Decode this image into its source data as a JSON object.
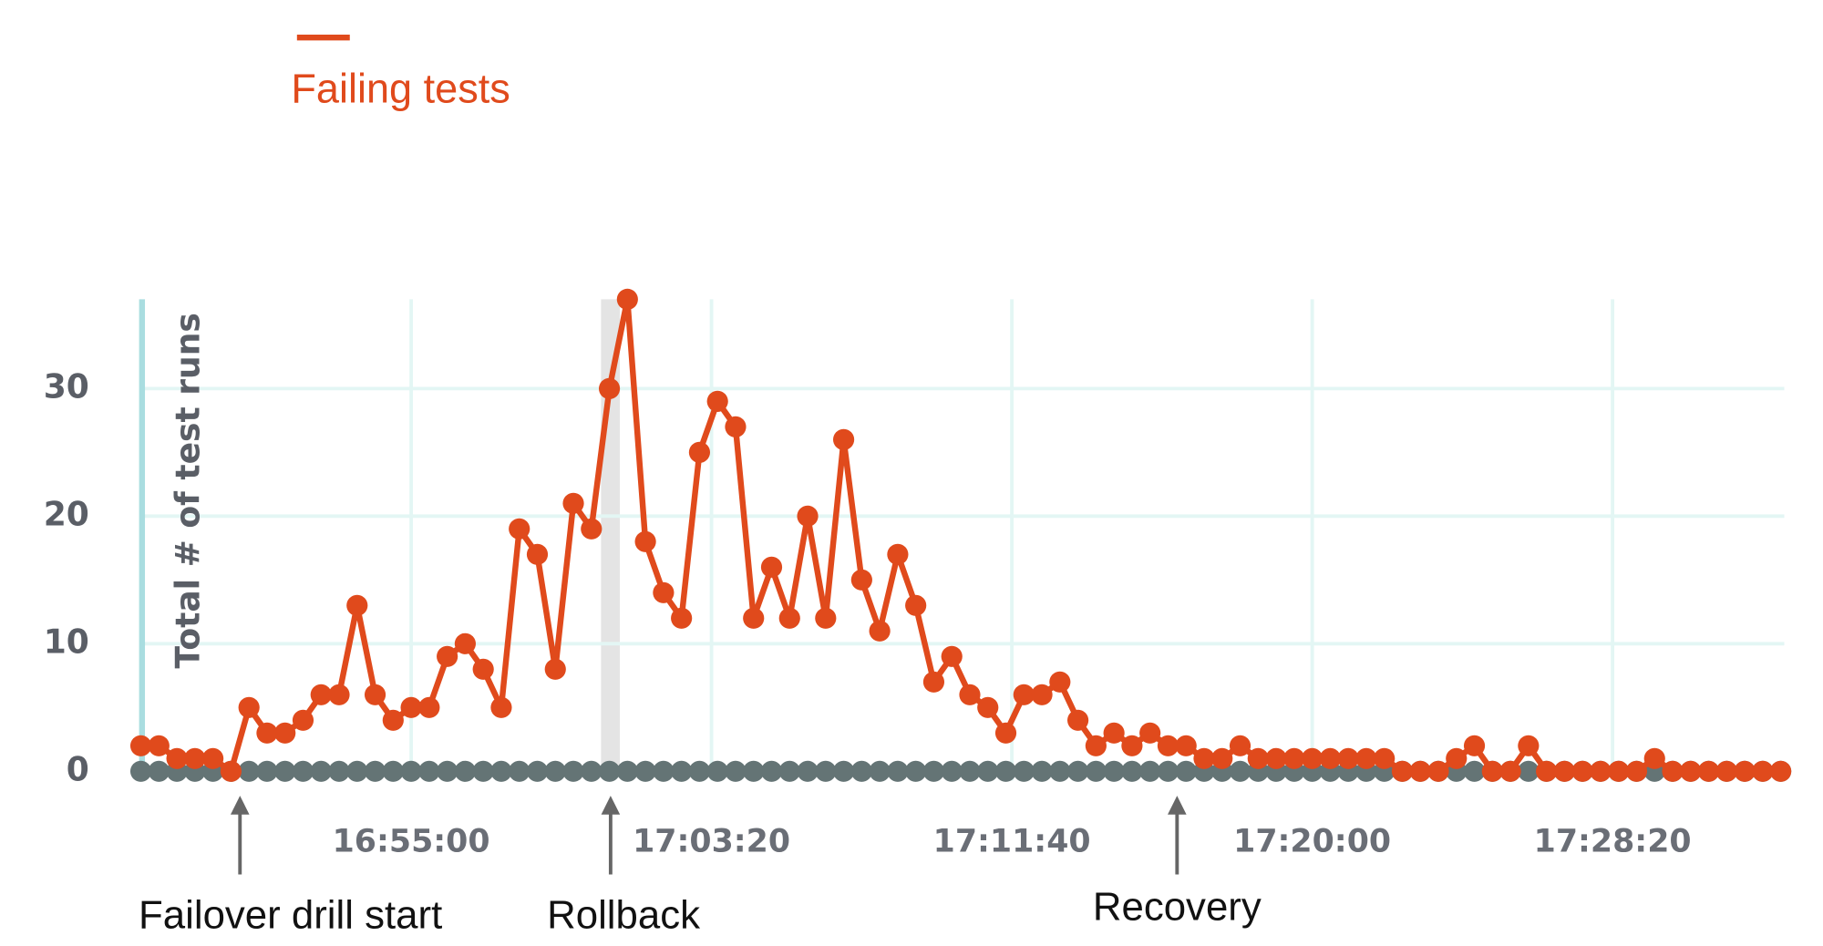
{
  "chart_data": {
    "type": "line",
    "y_label": "Total # of test runs",
    "x": [
      "16:47:30",
      "16:48:00",
      "16:48:30",
      "16:49:00",
      "16:49:30",
      "16:50:00",
      "16:50:30",
      "16:51:00",
      "16:51:30",
      "16:52:00",
      "16:52:30",
      "16:53:00",
      "16:53:30",
      "16:54:00",
      "16:54:30",
      "16:55:00",
      "16:55:30",
      "16:56:00",
      "16:56:30",
      "16:57:00",
      "16:57:30",
      "16:58:00",
      "16:58:30",
      "16:59:00",
      "16:59:30",
      "17:00:00",
      "17:00:30",
      "17:01:00",
      "17:01:30",
      "17:02:00",
      "17:02:30",
      "17:03:00",
      "17:03:30",
      "17:04:00",
      "17:04:30",
      "17:05:00",
      "17:05:30",
      "17:06:00",
      "17:06:30",
      "17:07:00",
      "17:07:30",
      "17:08:00",
      "17:08:30",
      "17:09:00",
      "17:09:30",
      "17:10:00",
      "17:10:30",
      "17:11:00",
      "17:11:30",
      "17:12:00",
      "17:12:30",
      "17:13:00",
      "17:13:30",
      "17:14:00",
      "17:14:30",
      "17:15:00",
      "17:15:30",
      "17:16:00",
      "17:16:30",
      "17:17:00",
      "17:17:30",
      "17:18:00",
      "17:18:30",
      "17:19:00",
      "17:19:30",
      "17:20:00",
      "17:20:30",
      "17:21:00",
      "17:21:30",
      "17:22:00",
      "17:22:30",
      "17:23:00",
      "17:23:30",
      "17:24:00",
      "17:24:30",
      "17:25:00",
      "17:25:30",
      "17:26:00",
      "17:26:30",
      "17:27:00",
      "17:27:30",
      "17:28:00",
      "17:28:30",
      "17:29:00",
      "17:29:30",
      "17:30:00",
      "17:30:30",
      "17:31:00",
      "17:31:30",
      "17:32:00",
      "17:32:30",
      "17:33:00"
    ],
    "series": [
      {
        "name": "Failing tests",
        "color": "#e04a1c",
        "values": [
          2,
          2,
          1,
          1,
          1,
          0,
          5,
          3,
          3,
          4,
          6,
          6,
          13,
          6,
          4,
          5,
          5,
          9,
          10,
          8,
          5,
          19,
          17,
          8,
          21,
          19,
          30,
          37,
          18,
          14,
          12,
          25,
          29,
          27,
          12,
          16,
          12,
          20,
          12,
          26,
          15,
          11,
          17,
          13,
          7,
          9,
          6,
          5,
          3,
          6,
          6,
          7,
          4,
          2,
          3,
          2,
          3,
          2,
          2,
          1,
          1,
          2,
          1,
          1,
          1,
          1,
          1,
          1,
          1,
          1,
          0,
          0,
          0,
          1,
          2,
          0,
          0,
          2,
          0,
          0,
          0,
          0,
          0,
          0,
          1,
          0,
          0,
          0,
          0,
          0,
          0,
          0
        ]
      },
      {
        "color": "#647475",
        "values": [
          0,
          0,
          0,
          0,
          0,
          0,
          0,
          0,
          0,
          0,
          0,
          0,
          0,
          0,
          0,
          0,
          0,
          0,
          0,
          0,
          0,
          0,
          0,
          0,
          0,
          0,
          0,
          0,
          0,
          0,
          0,
          0,
          0,
          0,
          0,
          0,
          0,
          0,
          0,
          0,
          0,
          0,
          0,
          0,
          0,
          0,
          0,
          0,
          0,
          0,
          0,
          0,
          0,
          0,
          0,
          0,
          0,
          0,
          0,
          0,
          0,
          0,
          0,
          0,
          0,
          0,
          0,
          0,
          0,
          0,
          0,
          0,
          0,
          0,
          0,
          0,
          0,
          0,
          0,
          0,
          0,
          0,
          0,
          0,
          0,
          0,
          0,
          0,
          0,
          0,
          0,
          0
        ]
      }
    ],
    "xlim": [
      "16:47:30",
      "17:33:00"
    ],
    "xticks": [
      "16:55:00",
      "17:03:20",
      "17:11:40",
      "17:20:00",
      "17:28:20"
    ],
    "ylim": [
      -1,
      37
    ],
    "yticks": [
      0,
      10,
      20,
      30
    ],
    "grid": true,
    "annotations": [
      {
        "text": "Failover drill start",
        "x": "16:50:15"
      },
      {
        "text": "Rollback",
        "x": "17:00:32"
      },
      {
        "text": "Recovery",
        "x": "17:16:15"
      }
    ]
  }
}
